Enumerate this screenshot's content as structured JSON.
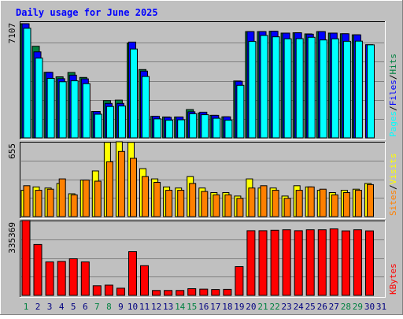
{
  "colors": {
    "page_bg": "#c0c0c0",
    "plot_bg": "#c0c0c0",
    "gridline": "#808080",
    "hits": "#008040",
    "files": "#0000ff",
    "pages": "#00ffff",
    "visits": "#ffff00",
    "sites": "#ff8000",
    "kbytes": "#ff0000",
    "weekday_label": "#008040",
    "weekend_label": "#000080",
    "title": "#0000ff"
  },
  "chart_data": {
    "title": "Daily usage for June 2025",
    "type": "bar",
    "days": [
      1,
      2,
      3,
      4,
      5,
      6,
      7,
      8,
      9,
      10,
      11,
      12,
      13,
      14,
      15,
      16,
      17,
      18,
      19,
      20,
      21,
      22,
      23,
      24,
      25,
      26,
      27,
      28,
      29,
      30,
      31
    ],
    "weekend_days": [
      1,
      7,
      8,
      14,
      15,
      21,
      22,
      28,
      29
    ],
    "panels": [
      {
        "name": "hits-files-pages",
        "ymax_label": "7107",
        "ymax": 7107,
        "legend": [
          {
            "label": "Pages",
            "color": "#00ffff"
          },
          {
            "label": "/",
            "color": "#000000"
          },
          {
            "label": "Files",
            "color": "#0000ff"
          },
          {
            "label": "/",
            "color": "#000000"
          },
          {
            "label": "Hits",
            "color": "#008040"
          }
        ],
        "series": [
          {
            "name": "Hits",
            "color": "#008040",
            "values": [
              7100,
              5700,
              4080,
              3800,
              4070,
              3760,
              1640,
              2320,
              2350,
              5900,
              4250,
              1340,
              1300,
              1300,
              1760,
              1550,
              1400,
              1310,
              3540,
              6610,
              6610,
              6630,
              6520,
              6540,
              6470,
              6610,
              6520,
              6480,
              6410,
              null,
              null
            ]
          },
          {
            "name": "Files",
            "color": "#0000ff",
            "values": [
              7100,
              5350,
              4080,
              3680,
              3900,
              3670,
              1640,
              2140,
              2140,
              5960,
              4150,
              1340,
              1280,
              1300,
              1620,
              1600,
              1400,
              1310,
              3520,
              6610,
              6610,
              6630,
              6520,
              6540,
              6450,
              6610,
              6520,
              6480,
              6410,
              5800,
              null
            ]
          },
          {
            "name": "Pages",
            "color": "#00ffff",
            "values": [
              6820,
              4960,
              3700,
              3490,
              3550,
              3370,
              1470,
              1950,
              1980,
              5530,
              3820,
              1180,
              1100,
              1120,
              1500,
              1440,
              1220,
              1100,
              3270,
              6000,
              6370,
              6290,
              6160,
              6170,
              6260,
              6090,
              6160,
              6010,
              6020,
              5790,
              null
            ]
          }
        ]
      },
      {
        "name": "visits-sites",
        "ymax_label": "655",
        "ymax": 655,
        "legend": [
          {
            "label": "Sites",
            "color": "#ff8000"
          },
          {
            "label": "/",
            "color": "#000000"
          },
          {
            "label": "Visits",
            "color": "#ffff00"
          }
        ],
        "series": [
          {
            "name": "Visits",
            "color": "#ffff00",
            "values": [
              230,
              260,
              250,
              290,
              200,
              320,
              400,
              650,
              655,
              650,
              420,
              330,
              260,
              250,
              350,
              250,
              210,
              210,
              180,
              330,
              250,
              250,
              180,
              270,
              260,
              230,
              210,
              230,
              240,
              290,
              null
            ]
          },
          {
            "name": "Sites",
            "color": "#ff8000",
            "values": [
              270,
              230,
              240,
              330,
              190,
              320,
              310,
              480,
              570,
              510,
              350,
              300,
              230,
              230,
              290,
              220,
              190,
              190,
              160,
              250,
              270,
              230,
              160,
              230,
              260,
              240,
              190,
              210,
              230,
              280,
              null
            ]
          }
        ]
      },
      {
        "name": "kbytes",
        "ymax_label": "335369",
        "ymax": 335369,
        "legend": [
          {
            "label": "KBytes",
            "color": "#ff0000"
          }
        ],
        "series": [
          {
            "name": "KBytes",
            "color": "#ff0000",
            "values": [
              335369,
              228000,
              150000,
              152000,
              164000,
              150000,
              43000,
              46000,
              32000,
              196000,
              133000,
              22000,
              22000,
              22000,
              30000,
              28000,
              26000,
              27000,
              129000,
              290000,
              290000,
              292000,
              294000,
              290000,
              294000,
              294000,
              298000,
              289000,
              294000,
              289000,
              null
            ]
          }
        ]
      }
    ]
  }
}
